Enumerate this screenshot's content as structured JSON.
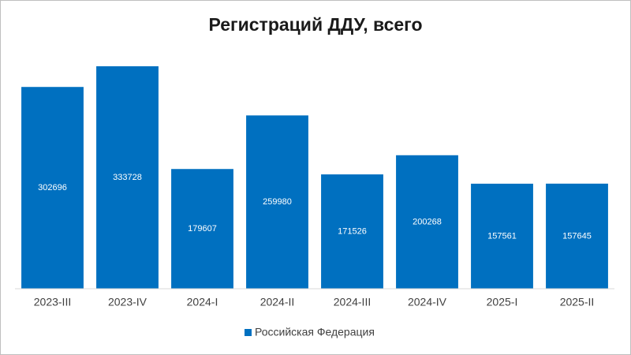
{
  "chart_data": {
    "type": "bar",
    "title": "Регистраций ДДУ, всего",
    "categories": [
      "2023-III",
      "2023-IV",
      "2024-I",
      "2024-II",
      "2024-III",
      "2024-IV",
      "2025-I",
      "2025-II"
    ],
    "series": [
      {
        "name": "Российская Федерация",
        "color": "#0070c0",
        "values": [
          302696,
          333728,
          179607,
          259980,
          171526,
          200268,
          157561,
          157645
        ]
      }
    ],
    "legend": "bottom"
  }
}
